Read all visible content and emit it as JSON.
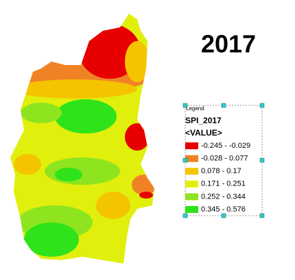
{
  "title": "2017",
  "legend": {
    "heading": "Legend",
    "field": "SPI_2017",
    "subfield": "<VALUE>",
    "items": [
      {
        "label": "-0.245 - -0.029",
        "color": "#e60000"
      },
      {
        "label": "-0.028 - 0.077",
        "color": "#f08226"
      },
      {
        "label": "0.078 - 0.17",
        "color": "#f5c400"
      },
      {
        "label": "0.171 - 0.251",
        "color": "#e1ef0c"
      },
      {
        "label": "0.252 - 0.344",
        "color": "#8ee41e"
      },
      {
        "label": "0.345 - 0.576",
        "color": "#2ee31a"
      }
    ]
  }
}
